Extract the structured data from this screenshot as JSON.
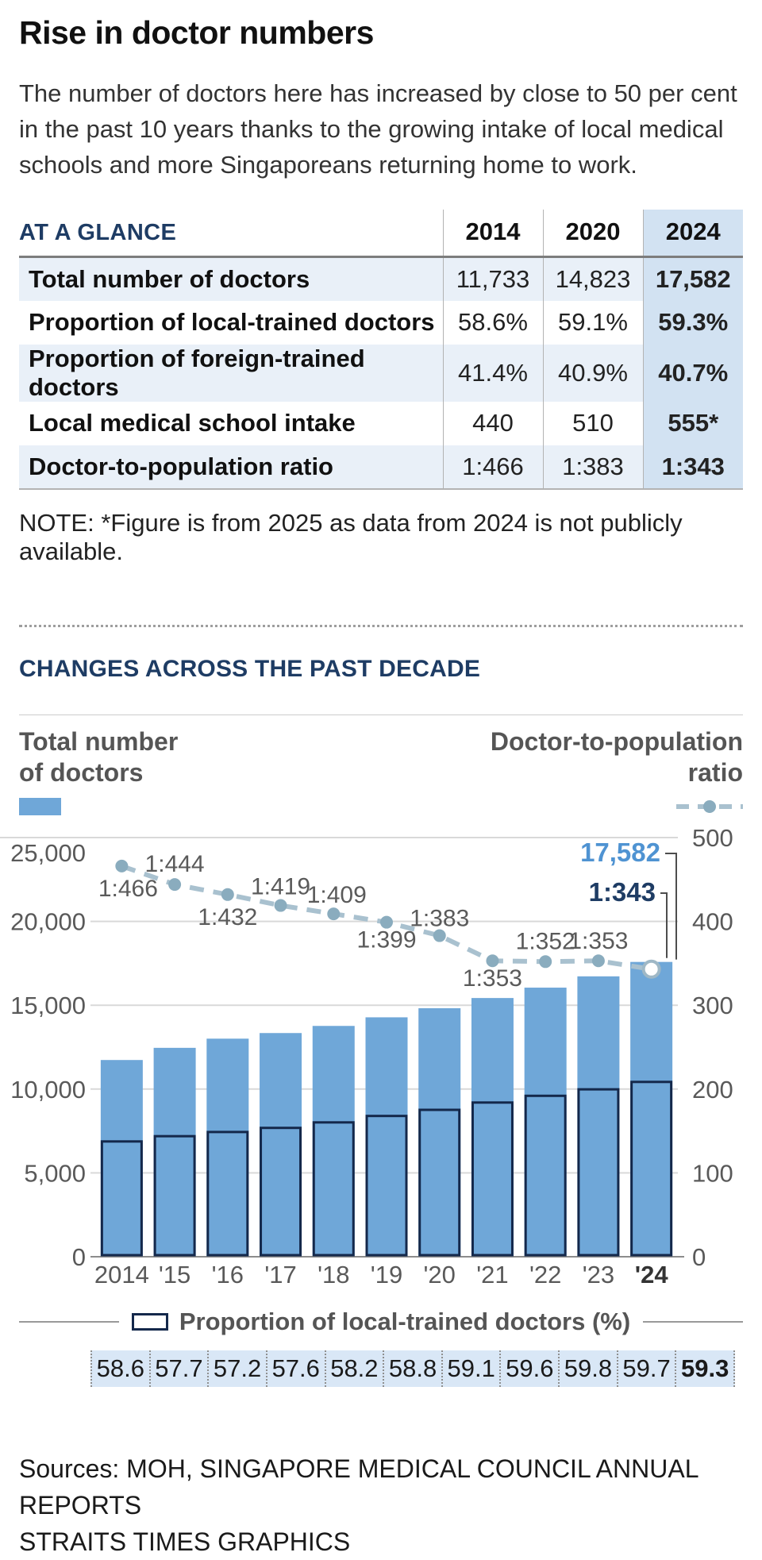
{
  "title": "Rise in doctor numbers",
  "intro": "The number of doctors here has increased by close to 50 per cent in the past 10 years thanks to the growing intake of local medical schools and more Singaporeans returning home to work.",
  "table": {
    "heading": "AT A GLANCE",
    "years": [
      "2014",
      "2020",
      "2024"
    ],
    "rows": [
      {
        "label": "Total number of doctors",
        "values": [
          "11,733",
          "14,823",
          "17,582"
        ]
      },
      {
        "label": "Proportion of local-trained doctors",
        "values": [
          "58.6%",
          "59.1%",
          "59.3%"
        ]
      },
      {
        "label": "Proportion of foreign-trained doctors",
        "values": [
          "41.4%",
          "40.9%",
          "40.7%"
        ]
      },
      {
        "label": "Local medical school intake",
        "values": [
          "440",
          "510",
          "555*"
        ]
      },
      {
        "label": "Doctor-to-population ratio",
        "values": [
          "1:466",
          "1:383",
          "1:343"
        ]
      }
    ],
    "note": "NOTE: *Figure is from 2025 as data from 2024 is not publicly available."
  },
  "section": {
    "heading": "CHANGES ACROSS THE PAST DECADE"
  },
  "chart_header": {
    "left_label_line1": "Total number",
    "left_label_line2": "of doctors",
    "right_label_line1": "Doctor-to-population",
    "right_label_line2": "ratio"
  },
  "chart_data": {
    "type": "bar+line",
    "categories": [
      "2014",
      "'15",
      "'16",
      "'17",
      "'18",
      "'19",
      "'20",
      "'21",
      "'22",
      "'23",
      "'24"
    ],
    "series": [
      {
        "name": "Total number of doctors",
        "type": "bar",
        "values": [
          11733,
          12459,
          13006,
          13341,
          13766,
          14279,
          14823,
          15430,
          16049,
          16723,
          17582
        ]
      },
      {
        "name": "Proportion of local-trained doctors (%)",
        "type": "inner_bar_percent",
        "values": [
          58.6,
          57.7,
          57.2,
          57.6,
          58.2,
          58.8,
          59.1,
          59.6,
          59.8,
          59.7,
          59.3
        ]
      },
      {
        "name": "Doctor-to-population ratio",
        "type": "line",
        "values": [
          466,
          444,
          432,
          419,
          409,
          399,
          383,
          353,
          352,
          353,
          343
        ],
        "point_labels": [
          "1:466",
          "1:444",
          "1:432",
          "1:419",
          "1:409",
          "1:399",
          "1:383",
          "1:353",
          "1:352",
          "1:353",
          ""
        ]
      }
    ],
    "left_axis": {
      "ticks": [
        "25,000",
        "20,000",
        "15,000",
        "10,000",
        "5,000",
        "0"
      ],
      "max": 25000
    },
    "right_axis": {
      "ticks": [
        "500",
        "400",
        "300",
        "200",
        "100",
        "0"
      ],
      "max": 500
    },
    "annotations": [
      {
        "text": "17,582",
        "target": "last-bar-top"
      },
      {
        "text": "1:343",
        "target": "last-line-point"
      }
    ],
    "colors": {
      "bar": "#6fa7d8",
      "inner_bar_outline": "#14284b",
      "line": "#a9c1cf",
      "dot": "#8aacbe",
      "open_dot_stroke": "#9fb8c6",
      "annotation_total": "#4f93d2",
      "annotation_ratio": "#1e3c64"
    },
    "legend_position": "top"
  },
  "pct_legend_label": "Proportion of local-trained doctors (%)",
  "pct_values": [
    "58.6",
    "57.7",
    "57.2",
    "57.6",
    "58.2",
    "58.8",
    "59.1",
    "59.6",
    "59.8",
    "59.7",
    "59.3"
  ],
  "sources": {
    "line1": "Sources: MOH, SINGAPORE MEDICAL COUNCIL ANNUAL REPORTS",
    "line2": "STRAITS TIMES GRAPHICS"
  }
}
